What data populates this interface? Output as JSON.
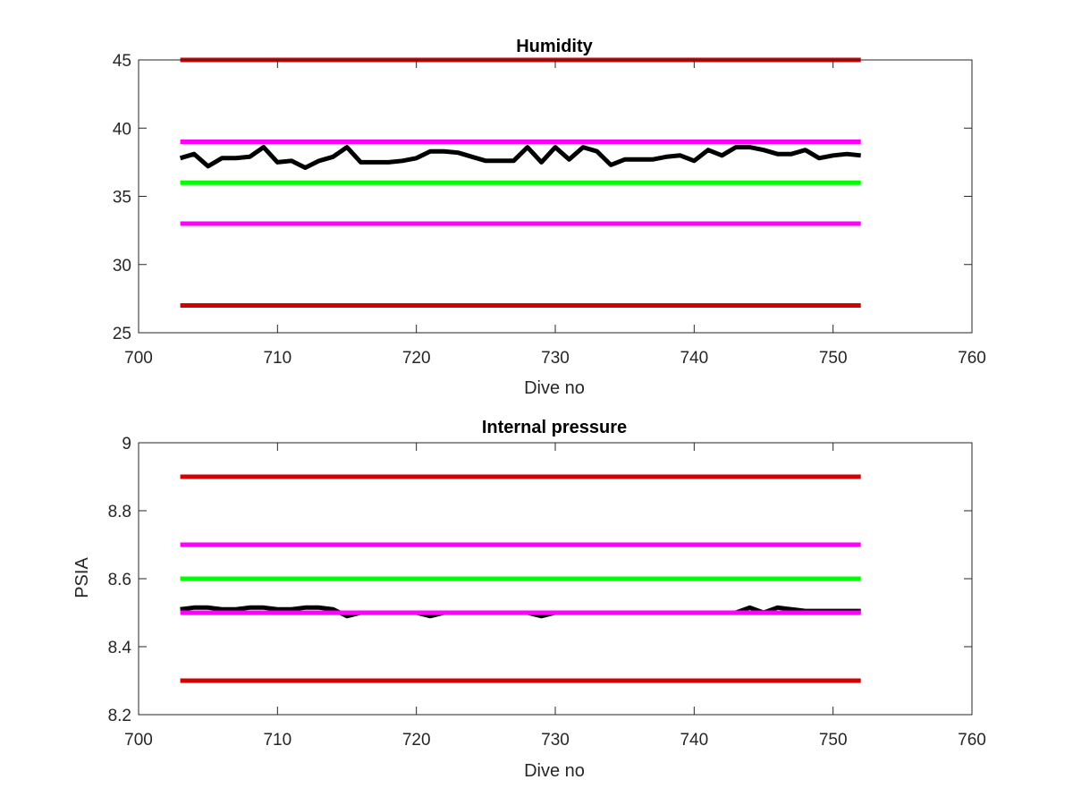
{
  "colors": {
    "red": "#d40000",
    "magenta": "#ff00ff",
    "green": "#00ff00",
    "black": "#000000",
    "axis": "#262626"
  },
  "chart_data": [
    {
      "type": "line",
      "title": "Humidity",
      "xlabel": "Dive no",
      "ylabel": "",
      "xlim": [
        700,
        760
      ],
      "ylim": [
        25,
        45
      ],
      "xticks": [
        "700",
        "710",
        "720",
        "730",
        "740",
        "750",
        "760"
      ],
      "yticks": [
        "25",
        "30",
        "35",
        "40",
        "45"
      ],
      "xtick_values": [
        700,
        710,
        720,
        730,
        740,
        750,
        760
      ],
      "ytick_values": [
        25,
        30,
        35,
        40,
        45
      ],
      "grid": false,
      "series": [
        {
          "color": "#d40000",
          "x": [
            703,
            752
          ],
          "values": [
            45,
            45
          ]
        },
        {
          "color": "#ff00ff",
          "x": [
            703,
            752
          ],
          "values": [
            39,
            39
          ]
        },
        {
          "color": "#00ff00",
          "x": [
            703,
            752
          ],
          "values": [
            36,
            36
          ]
        },
        {
          "color": "#ff00ff",
          "x": [
            703,
            752
          ],
          "values": [
            33,
            33
          ]
        },
        {
          "color": "#d40000",
          "x": [
            703,
            752
          ],
          "values": [
            27,
            27
          ]
        },
        {
          "color": "#000000",
          "x": [
            703,
            704,
            705,
            706,
            707,
            708,
            709,
            710,
            711,
            712,
            713,
            714,
            715,
            716,
            717,
            718,
            719,
            720,
            721,
            722,
            723,
            724,
            725,
            726,
            727,
            728,
            729,
            730,
            731,
            732,
            733,
            734,
            735,
            736,
            737,
            738,
            739,
            740,
            741,
            742,
            743,
            744,
            745,
            746,
            747,
            748,
            749,
            750,
            751,
            752
          ],
          "values": [
            37.8,
            38.1,
            37.2,
            37.8,
            37.8,
            37.9,
            38.6,
            37.5,
            37.6,
            37.1,
            37.6,
            37.9,
            38.6,
            37.5,
            37.5,
            37.5,
            37.6,
            37.8,
            38.3,
            38.3,
            38.2,
            37.9,
            37.6,
            37.6,
            37.6,
            38.6,
            37.5,
            38.6,
            37.7,
            38.6,
            38.3,
            37.3,
            37.7,
            37.7,
            37.7,
            37.9,
            38.0,
            37.6,
            38.4,
            38.0,
            38.6,
            38.6,
            38.4,
            38.1,
            38.1,
            38.4,
            37.8,
            38.0,
            38.1,
            38.0
          ]
        }
      ]
    },
    {
      "type": "line",
      "title": "Internal pressure",
      "xlabel": "Dive no",
      "ylabel": "PSIA",
      "xlim": [
        700,
        760
      ],
      "ylim": [
        8.2,
        9.0
      ],
      "xticks": [
        "700",
        "710",
        "720",
        "730",
        "740",
        "750",
        "760"
      ],
      "yticks": [
        "8.2",
        "8.4",
        "8.6",
        "8.8",
        "9"
      ],
      "xtick_values": [
        700,
        710,
        720,
        730,
        740,
        750,
        760
      ],
      "ytick_values": [
        8.2,
        8.4,
        8.6,
        8.8,
        9.0
      ],
      "grid": false,
      "series": [
        {
          "color": "#d40000",
          "x": [
            703,
            752
          ],
          "values": [
            8.9,
            8.9
          ]
        },
        {
          "color": "#ff00ff",
          "x": [
            703,
            752
          ],
          "values": [
            8.7,
            8.7
          ]
        },
        {
          "color": "#00ff00",
          "x": [
            703,
            752
          ],
          "values": [
            8.6,
            8.6
          ]
        },
        {
          "color": "#000000",
          "x": [
            703,
            704,
            705,
            706,
            707,
            708,
            709,
            710,
            711,
            712,
            713,
            714,
            715,
            716,
            717,
            718,
            719,
            720,
            721,
            722,
            723,
            724,
            725,
            726,
            727,
            728,
            729,
            730,
            731,
            732,
            733,
            734,
            735,
            736,
            737,
            738,
            739,
            740,
            741,
            742,
            743,
            744,
            745,
            746,
            747,
            748,
            749,
            750,
            751,
            752
          ],
          "values": [
            8.51,
            8.515,
            8.515,
            8.51,
            8.51,
            8.515,
            8.515,
            8.51,
            8.51,
            8.515,
            8.515,
            8.51,
            8.49,
            8.5,
            8.5,
            8.5,
            8.5,
            8.5,
            8.49,
            8.5,
            8.5,
            8.5,
            8.5,
            8.5,
            8.5,
            8.5,
            8.49,
            8.5,
            8.5,
            8.5,
            8.5,
            8.5,
            8.5,
            8.5,
            8.5,
            8.5,
            8.5,
            8.5,
            8.5,
            8.5,
            8.5,
            8.515,
            8.5,
            8.515,
            8.51,
            8.505,
            8.505,
            8.505,
            8.505,
            8.505
          ]
        },
        {
          "color": "#ff00ff",
          "x": [
            703,
            752
          ],
          "values": [
            8.5,
            8.5
          ]
        },
        {
          "color": "#d40000",
          "x": [
            703,
            752
          ],
          "values": [
            8.3,
            8.3
          ]
        }
      ]
    }
  ]
}
